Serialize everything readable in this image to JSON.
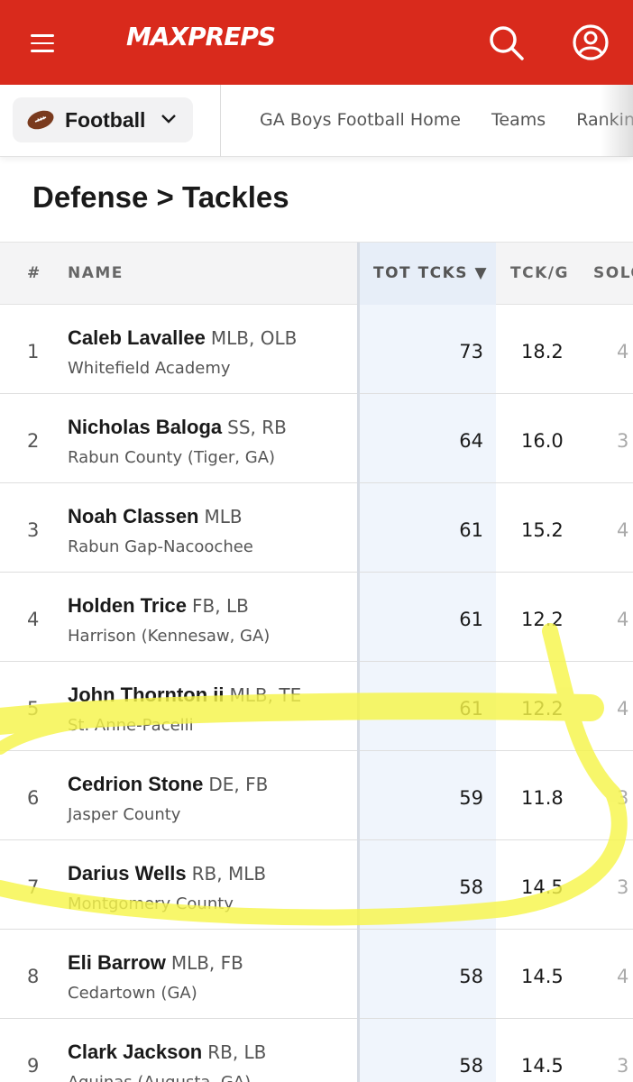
{
  "header": {
    "logo_text": "MAXPREPS",
    "icons": {
      "menu": "hamburger-icon",
      "search": "search-icon",
      "account": "account-icon"
    },
    "brand_color": "#d92a1c"
  },
  "subnav": {
    "sport": "Football",
    "links": [
      "GA Boys Football Home",
      "Teams",
      "Rankin"
    ]
  },
  "page": {
    "title": "Defense > Tackles"
  },
  "table": {
    "columns": {
      "rank": "#",
      "name": "NAME",
      "tot": "TOT TCKS ▼",
      "tckg": "TCK/G",
      "solo": "SOLO"
    },
    "rows": [
      {
        "rank": "1",
        "name": "Caleb Lavallee",
        "pos": "MLB, OLB",
        "school": "Whitefield Academy",
        "tot": "73",
        "tckg": "18.2",
        "solo": "4"
      },
      {
        "rank": "2",
        "name": "Nicholas Baloga",
        "pos": "SS, RB",
        "school": "Rabun County (Tiger, GA)",
        "tot": "64",
        "tckg": "16.0",
        "solo": "3"
      },
      {
        "rank": "3",
        "name": "Noah Classen",
        "pos": "MLB",
        "school": "Rabun Gap-Nacoochee",
        "tot": "61",
        "tckg": "15.2",
        "solo": "4"
      },
      {
        "rank": "4",
        "name": "Holden Trice",
        "pos": "FB, LB",
        "school": "Harrison (Kennesaw, GA)",
        "tot": "61",
        "tckg": "12.2",
        "solo": "4"
      },
      {
        "rank": "5",
        "name": "John Thornton ii",
        "pos": "MLB, TE",
        "school": "St. Anne-Pacelli",
        "tot": "61",
        "tckg": "12.2",
        "solo": "4"
      },
      {
        "rank": "6",
        "name": "Cedrion Stone",
        "pos": "DE, FB",
        "school": "Jasper County",
        "tot": "59",
        "tckg": "11.8",
        "solo": "3"
      },
      {
        "rank": "7",
        "name": "Darius Wells",
        "pos": "RB, MLB",
        "school": "Montgomery County",
        "tot": "58",
        "tckg": "14.5",
        "solo": "3"
      },
      {
        "rank": "8",
        "name": "Eli Barrow",
        "pos": "MLB, FB",
        "school": "Cedartown (GA)",
        "tot": "58",
        "tckg": "14.5",
        "solo": "4"
      },
      {
        "rank": "9",
        "name": "Clark Jackson",
        "pos": "RB, LB",
        "school": "Aquinas (Augusta, GA)",
        "tot": "58",
        "tckg": "14.5",
        "solo": "3"
      }
    ]
  },
  "annotation": {
    "highlight_color": "#f6f54a"
  }
}
